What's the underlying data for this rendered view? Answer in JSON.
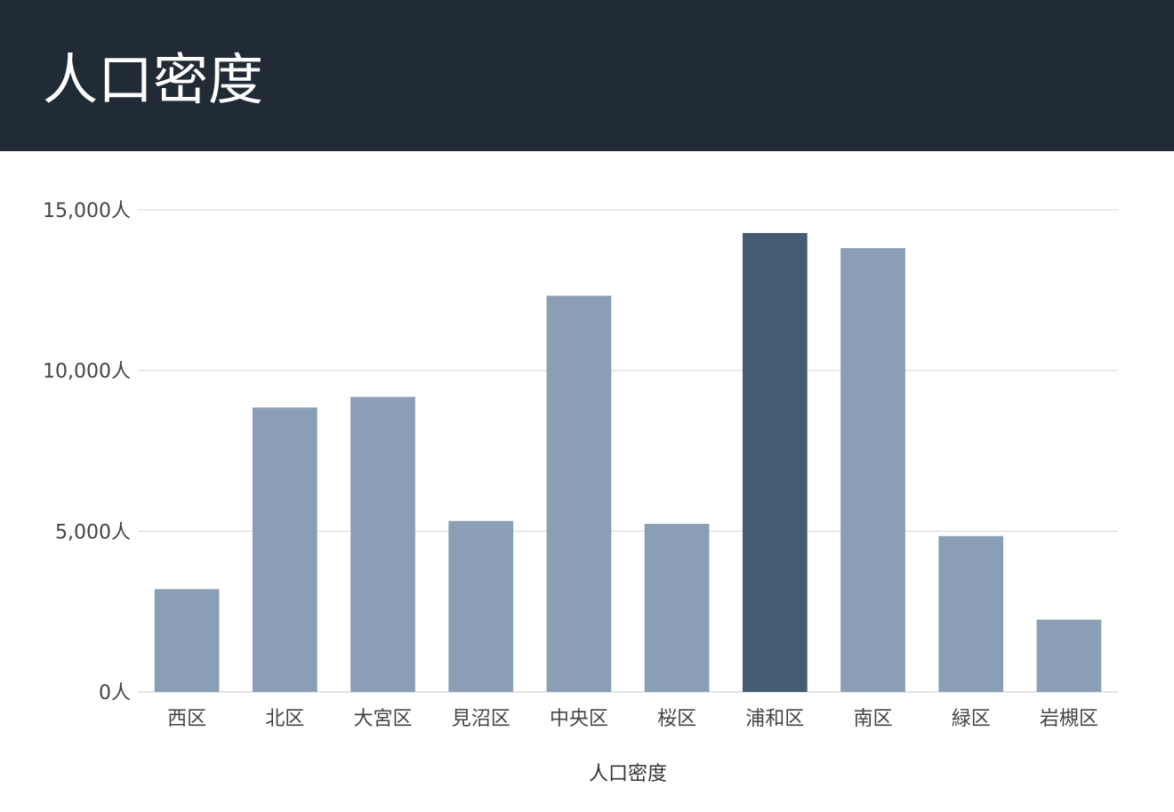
{
  "header": {
    "title": "人口密度"
  },
  "colors": {
    "header_bg": "#212b36",
    "bar": "#8a9fb5",
    "bar_highlight": "#455d74",
    "grid": "#e3e3e3"
  },
  "chart_data": {
    "type": "bar",
    "title": "人口密度",
    "categories": [
      "西区",
      "北区",
      "大宮区",
      "見沼区",
      "中央区",
      "桜区",
      "浦和区",
      "南区",
      "緑区",
      "岩槻区"
    ],
    "values": [
      3200,
      8850,
      9180,
      5320,
      12330,
      5230,
      14280,
      13810,
      4850,
      2250
    ],
    "highlight_category": "浦和区",
    "xlabel": "人口密度",
    "ylabel": "",
    "ylim": [
      0,
      15000
    ],
    "yticks": [
      {
        "value": 0,
        "label": "0人"
      },
      {
        "value": 5000,
        "label": "5,000人"
      },
      {
        "value": 10000,
        "label": "10,000人"
      },
      {
        "value": 15000,
        "label": "15,000人"
      }
    ],
    "grid": true,
    "legend": "none"
  }
}
